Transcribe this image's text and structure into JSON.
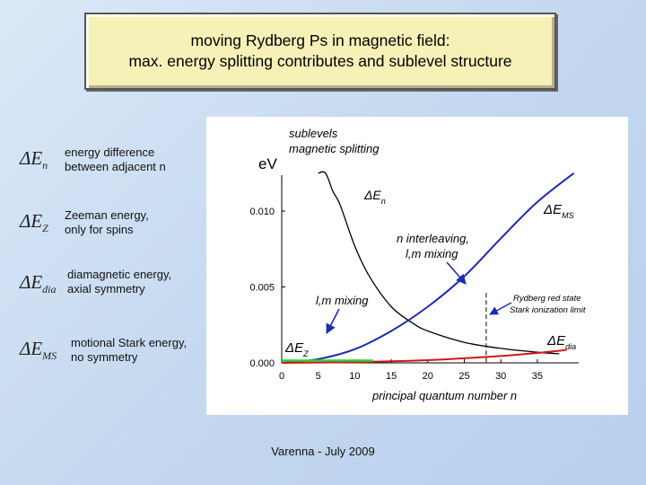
{
  "slide": {
    "title_line1": "moving Rydberg Ps in magnetic field:",
    "title_line2": "max. energy splitting contributes and sublevel structure",
    "footer": "Varenna - July 2009"
  },
  "legend": [
    {
      "symbol": "ΔE",
      "sub": "n",
      "line1": "energy difference",
      "line2": "between adjacent n"
    },
    {
      "symbol": "ΔE",
      "sub": "Z",
      "line1": "Zeeman energy,",
      "line2": "only for spins"
    },
    {
      "symbol": "ΔE",
      "sub": "dia",
      "line1": "diamagnetic energy,",
      "line2": "axial symmetry"
    },
    {
      "symbol": "ΔE",
      "sub": "MS",
      "line1": "motional Stark energy,",
      "line2": "no symmetry"
    }
  ],
  "chart_data": {
    "type": "line",
    "ylabel": "eV",
    "xlabel": "principal quantum number n",
    "xlim": [
      0,
      40
    ],
    "ylim": [
      0,
      0.0125
    ],
    "xticks": [
      "0",
      "5",
      "10",
      "15",
      "20",
      "25",
      "30",
      "35"
    ],
    "yticks": [
      "0.000",
      "0.005",
      "0.010"
    ],
    "series": [
      {
        "name": "ΔE_n",
        "color": "#000000",
        "x": [
          5,
          6,
          7,
          8,
          10,
          12,
          15,
          18,
          20,
          25,
          30,
          35,
          38
        ],
        "y": [
          0.0125,
          0.0125,
          0.0113,
          0.0104,
          0.0077,
          0.0057,
          0.0037,
          0.0026,
          0.0021,
          0.00135,
          0.00095,
          0.0007,
          0.0006
        ]
      },
      {
        "name": "ΔE_MS",
        "color": "#1c2bb0",
        "x": [
          0,
          5,
          10,
          15,
          20,
          25,
          30,
          35,
          40
        ],
        "y": [
          0,
          0.00025,
          0.0009,
          0.0021,
          0.0037,
          0.0057,
          0.0082,
          0.0106,
          0.0125
        ]
      },
      {
        "name": "ΔE_dia",
        "color": "#d01818",
        "x": [
          0,
          10,
          15,
          20,
          25,
          30,
          35,
          39
        ],
        "y": [
          0,
          5e-05,
          0.0001,
          0.00018,
          0.0003,
          0.00045,
          0.00065,
          0.00085
        ]
      },
      {
        "name": "ΔE_Z",
        "color": "#33cc33",
        "x": [
          0,
          12.5
        ],
        "y": [
          0.00015,
          0.00015
        ]
      }
    ],
    "vline": {
      "x": 28,
      "y_top": 0.0046
    },
    "annotations": {
      "header1": "sublevels",
      "header2": "magnetic splitting",
      "den": "ΔE",
      "den_sub": "n",
      "dems": "ΔE",
      "dems_sub": "MS",
      "interleave1": "n interleaving,",
      "interleave2": "l,m mixing",
      "lm": "l,m mixing",
      "dez": "ΔE",
      "dez_sub": "Z",
      "dedia": "ΔE",
      "dedia_sub": "dia",
      "stark1": "Rydberg red state",
      "stark2": "Stark ionization limit"
    }
  }
}
